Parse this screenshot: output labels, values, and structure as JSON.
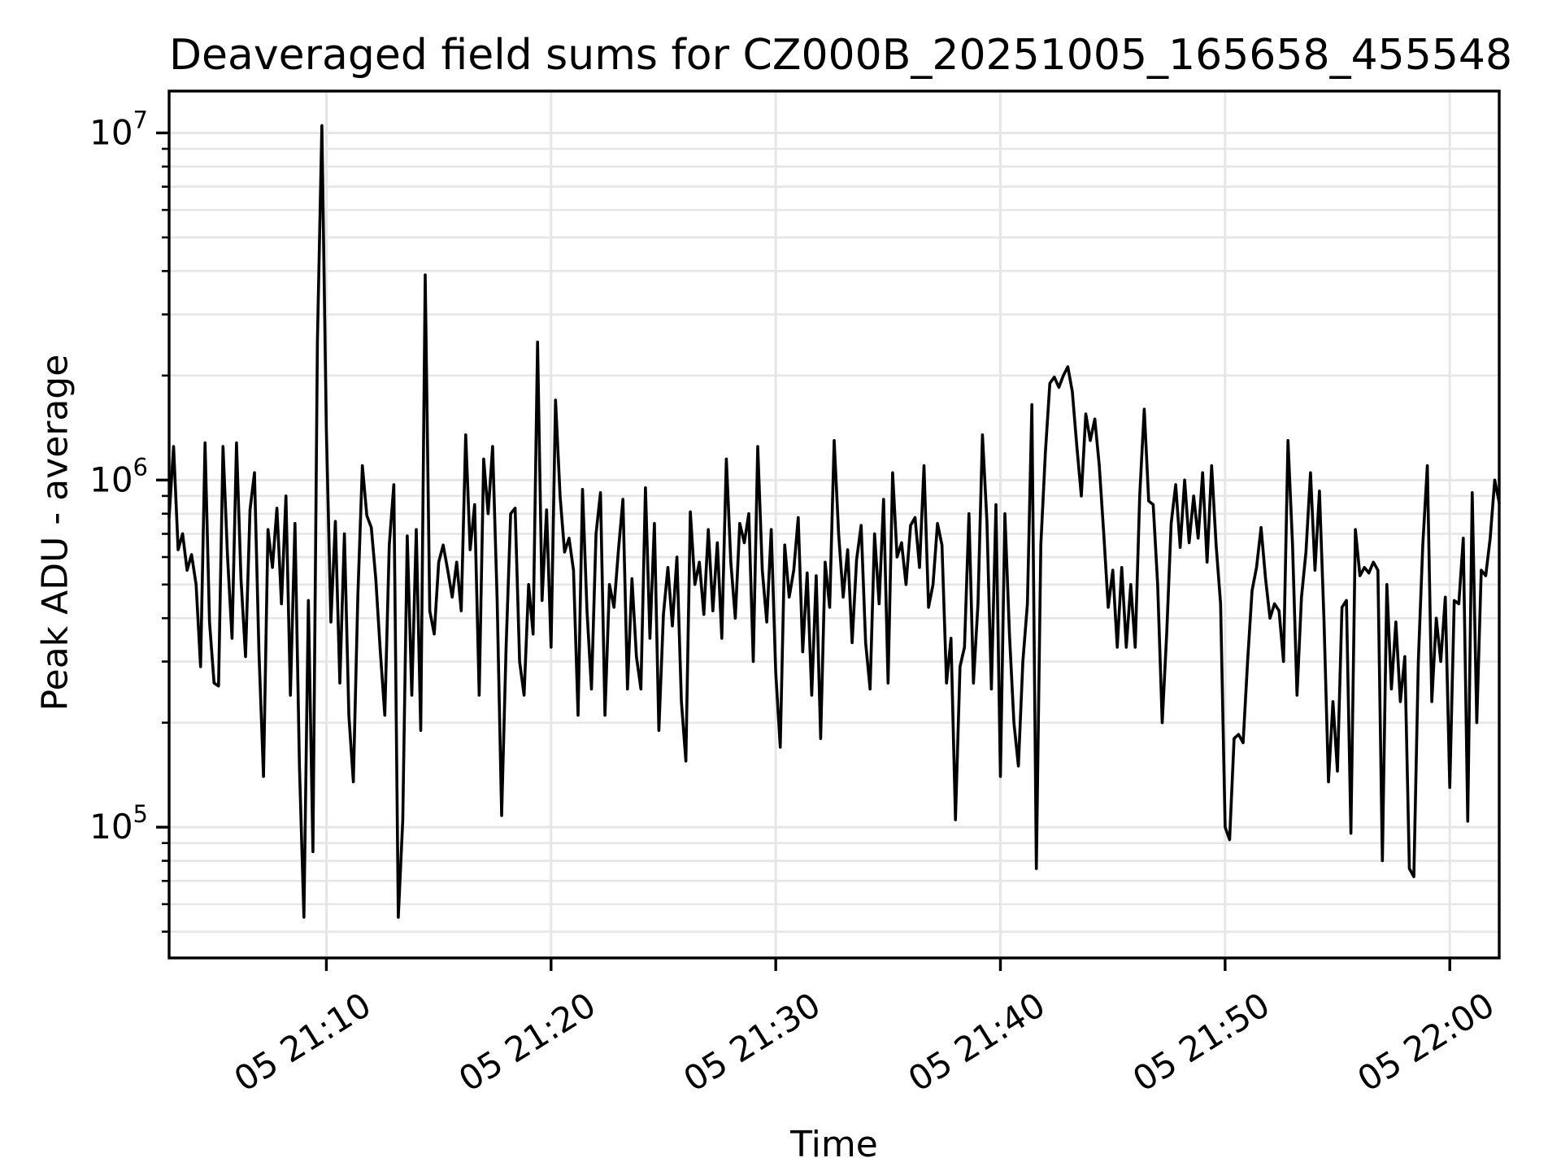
{
  "figure": {
    "background": "#ffffff"
  },
  "chart_data": {
    "type": "line",
    "title": "Deaveraged field sums for CZ000B_20251005_165658_455548",
    "xlabel": "Time",
    "ylabel": "Peak ADU - average",
    "yscale": "log",
    "grid": "both-horizontal-major-vertical",
    "legend": "none",
    "line_color": "#000000",
    "grid_color": "#e6e6e6",
    "axis_color": "#000000",
    "ylim": [
      42000,
      13200000
    ],
    "xlim_minutes_after_2100": [
      3.0,
      62.2
    ],
    "xticks": [
      {
        "minute": 10,
        "label": "05 21:10"
      },
      {
        "minute": 20,
        "label": "05 21:20"
      },
      {
        "minute": 30,
        "label": "05 21:30"
      },
      {
        "minute": 40,
        "label": "05 21:40"
      },
      {
        "minute": 50,
        "label": "05 21:50"
      },
      {
        "minute": 60,
        "label": "05 22:00"
      }
    ],
    "yticks": [
      {
        "value": 100000,
        "label": "10^5"
      },
      {
        "value": 1000000,
        "label": "10^6"
      },
      {
        "value": 10000000,
        "label": "10^7"
      }
    ],
    "x_start_min": 3.0,
    "x_step_min": 0.2,
    "values": [
      780000,
      1250000,
      630000,
      700000,
      550000,
      610000,
      500000,
      290000,
      1280000,
      390000,
      260000,
      255000,
      1250000,
      600000,
      350000,
      1280000,
      520000,
      310000,
      820000,
      1050000,
      320000,
      140000,
      720000,
      560000,
      830000,
      440000,
      900000,
      240000,
      750000,
      150000,
      55000,
      450000,
      85000,
      2500000,
      10500000,
      1400000,
      390000,
      760000,
      260000,
      700000,
      210000,
      135000,
      460000,
      1100000,
      790000,
      730000,
      520000,
      320000,
      210000,
      650000,
      970000,
      55000,
      105000,
      690000,
      240000,
      720000,
      190000,
      3900000,
      420000,
      360000,
      580000,
      650000,
      550000,
      460000,
      580000,
      420000,
      1350000,
      630000,
      850000,
      240000,
      1150000,
      800000,
      1250000,
      450000,
      108000,
      330000,
      800000,
      830000,
      300000,
      240000,
      500000,
      360000,
      2500000,
      450000,
      820000,
      330000,
      1700000,
      900000,
      620000,
      680000,
      550000,
      210000,
      940000,
      420000,
      250000,
      700000,
      920000,
      210000,
      500000,
      430000,
      630000,
      880000,
      250000,
      520000,
      310000,
      250000,
      950000,
      350000,
      750000,
      190000,
      410000,
      560000,
      380000,
      600000,
      230000,
      155000,
      810000,
      500000,
      580000,
      410000,
      720000,
      420000,
      660000,
      350000,
      1150000,
      580000,
      400000,
      750000,
      660000,
      800000,
      300000,
      1250000,
      550000,
      390000,
      720000,
      280000,
      170000,
      650000,
      460000,
      550000,
      780000,
      320000,
      540000,
      240000,
      530000,
      180000,
      580000,
      430000,
      1300000,
      700000,
      460000,
      630000,
      340000,
      590000,
      740000,
      340000,
      250000,
      700000,
      440000,
      880000,
      260000,
      1050000,
      600000,
      660000,
      500000,
      740000,
      780000,
      560000,
      1100000,
      430000,
      500000,
      750000,
      650000,
      260000,
      350000,
      105000,
      290000,
      330000,
      800000,
      260000,
      440000,
      1350000,
      760000,
      250000,
      850000,
      140000,
      800000,
      360000,
      200000,
      150000,
      300000,
      440000,
      1650000,
      76000,
      650000,
      1200000,
      1900000,
      1980000,
      1850000,
      2000000,
      2120000,
      1800000,
      1250000,
      900000,
      1550000,
      1300000,
      1500000,
      1100000,
      700000,
      430000,
      550000,
      330000,
      560000,
      330000,
      500000,
      330000,
      900000,
      1600000,
      870000,
      850000,
      500000,
      200000,
      360000,
      750000,
      970000,
      640000,
      1000000,
      660000,
      900000,
      680000,
      1050000,
      580000,
      1100000,
      650000,
      440000,
      100000,
      92000,
      180000,
      185000,
      175000,
      300000,
      480000,
      560000,
      730000,
      520000,
      400000,
      440000,
      420000,
      300000,
      1300000,
      650000,
      240000,
      460000,
      620000,
      1050000,
      550000,
      930000,
      400000,
      135000,
      230000,
      145000,
      430000,
      450000,
      96000,
      720000,
      530000,
      560000,
      540000,
      580000,
      550000,
      80000,
      500000,
      250000,
      390000,
      230000,
      310000,
      76000,
      72000,
      300000,
      650000,
      1100000,
      230000,
      400000,
      300000,
      460000,
      130000,
      450000,
      440000,
      680000,
      104000,
      920000,
      200000,
      550000,
      530000,
      680000,
      1000000,
      860000
    ]
  }
}
